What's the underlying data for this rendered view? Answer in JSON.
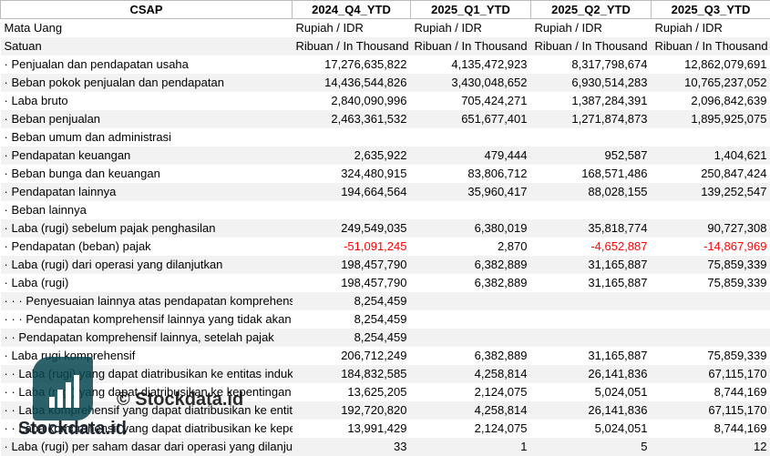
{
  "table": {
    "header": [
      "CSAP",
      "2024_Q4_YTD",
      "2025_Q1_YTD",
      "2025_Q2_YTD",
      "2025_Q3_YTD"
    ],
    "rows": [
      [
        "Mata Uang",
        "Rupiah / IDR",
        "Rupiah / IDR",
        "Rupiah / IDR",
        "Rupiah / IDR"
      ],
      [
        "Satuan",
        "Ribuan / In Thousand",
        "Ribuan / In Thousand",
        "Ribuan / In Thousand",
        "Ribuan / In Thousand"
      ],
      [
        "· Penjualan dan pendapatan usaha",
        "17,276,635,822",
        "4,135,472,923",
        "8,317,798,674",
        "12,862,079,691"
      ],
      [
        "· Beban pokok penjualan dan pendapatan",
        "14,436,544,826",
        "3,430,048,652",
        "6,930,514,283",
        "10,765,237,052"
      ],
      [
        "· Laba bruto",
        "2,840,090,996",
        "705,424,271",
        "1,387,284,391",
        "2,096,842,639"
      ],
      [
        "· Beban penjualan",
        "2,463,361,532",
        "651,677,401",
        "1,271,874,873",
        "1,895,925,075"
      ],
      [
        "· Beban umum dan administrasi",
        null,
        null,
        null,
        null
      ],
      [
        "· Pendapatan keuangan",
        "2,635,922",
        "479,444",
        "952,587",
        "1,404,621"
      ],
      [
        "· Beban bunga dan keuangan",
        "324,480,915",
        "83,806,712",
        "168,571,486",
        "250,847,424"
      ],
      [
        "· Pendapatan lainnya",
        "194,664,564",
        "35,960,417",
        "88,028,155",
        "139,252,547"
      ],
      [
        "· Beban lainnya",
        null,
        null,
        null,
        null
      ],
      [
        "· Laba (rugi) sebelum pajak penghasilan",
        "249,549,035",
        "6,380,019",
        "35,818,774",
        "90,727,308"
      ],
      [
        "· Pendapatan (beban) pajak",
        "-51,091,245",
        "2,870",
        "-4,652,887",
        "-14,867,969"
      ],
      [
        "· Laba (rugi) dari operasi yang dilanjutkan",
        "198,457,790",
        "6,382,889",
        "31,165,887",
        "75,859,339"
      ],
      [
        "· Laba (rugi)",
        "198,457,790",
        "6,382,889",
        "31,165,887",
        "75,859,339"
      ],
      [
        "· · · Penyesuaian lainnya atas pendapatan komprehensif lainnya",
        "8,254,459",
        null,
        null,
        null
      ],
      [
        "· · · Pendapatan komprehensif lainnya yang tidak akan direklasifikasi",
        "8,254,459",
        null,
        null,
        null
      ],
      [
        "· · Pendapatan komprehensif lainnya, setelah pajak",
        "8,254,459",
        null,
        null,
        null
      ],
      [
        "· Laba rugi komprehensif",
        "206,712,249",
        "6,382,889",
        "31,165,887",
        "75,859,339"
      ],
      [
        "· · Laba (rugi) yang dapat diatribusikan ke entitas induk",
        "184,832,585",
        "4,258,814",
        "26,141,836",
        "67,115,170"
      ],
      [
        "· · Laba (rugi) yang dapat diatribusikan ke kepentingan non-pengendali",
        "13,625,205",
        "2,124,075",
        "5,024,051",
        "8,744,169"
      ],
      [
        "· · Laba komprehensif yang dapat diatribusikan ke entitas induk",
        "192,720,820",
        "4,258,814",
        "26,141,836",
        "67,115,170"
      ],
      [
        "· · Laba komprehensif yang dapat diatribusikan ke kepentingan non-pengendali",
        "13,991,429",
        "2,124,075",
        "5,024,051",
        "8,744,169"
      ],
      [
        "· Laba (rugi) per saham dasar dari operasi yang dilanjutkan",
        "33",
        "1",
        "5",
        "12"
      ]
    ]
  },
  "watermark": {
    "overlay": "© Stockdata.id",
    "logo_text": "Stockdata.id"
  }
}
